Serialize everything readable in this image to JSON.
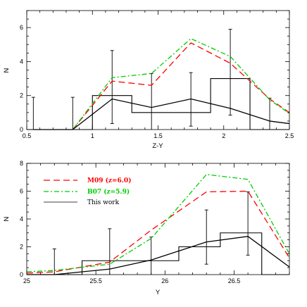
{
  "chart_data": [
    {
      "type": "line",
      "xlabel": "Z-Y",
      "ylabel": "N",
      "xlim": [
        0.5,
        2.5
      ],
      "ylim": [
        0,
        7
      ],
      "xticks": [
        "0.5",
        "1",
        "1.5",
        "2",
        "2.5"
      ],
      "yticks": [
        "0",
        "2",
        "4",
        "6"
      ],
      "series": [
        {
          "style": "dashed",
          "color": "#ff0000",
          "x": [
            0.85,
            1.15,
            1.45,
            1.75,
            2.05,
            2.35,
            2.5
          ],
          "y": [
            0.0,
            2.85,
            2.6,
            5.1,
            3.9,
            1.8,
            1.0
          ]
        },
        {
          "style": "dashdot",
          "color": "#00cc00",
          "x": [
            0.85,
            1.15,
            1.45,
            1.75,
            2.05,
            2.35,
            2.5
          ],
          "y": [
            0.0,
            3.05,
            3.3,
            5.35,
            4.3,
            1.75,
            0.95
          ]
        },
        {
          "style": "solid",
          "color": "#000000",
          "x": [
            0.55,
            0.85,
            1.15,
            1.45,
            1.75,
            2.05,
            2.35,
            2.5
          ],
          "y": [
            0.0,
            0.0,
            1.8,
            1.3,
            1.8,
            1.25,
            0.5,
            0.35
          ]
        }
      ],
      "histogram": {
        "edges": [
          0.5,
          1.0,
          1.3,
          1.9,
          2.2,
          2.5
        ],
        "values": [
          0,
          2,
          1,
          3,
          0
        ]
      },
      "errorbars": [
        {
          "x": 0.55,
          "lo": 0.0,
          "hi": 1.9
        },
        {
          "x": 0.85,
          "lo": 0.0,
          "hi": 1.9
        },
        {
          "x": 1.15,
          "lo": 0.35,
          "hi": 4.65
        },
        {
          "x": 1.45,
          "lo": 0.0,
          "hi": 3.3
        },
        {
          "x": 1.75,
          "lo": 0.2,
          "hi": 3.35
        },
        {
          "x": 2.05,
          "lo": 0.85,
          "hi": 5.9
        },
        {
          "x": 2.35,
          "lo": 0.0,
          "hi": 1.85
        }
      ]
    },
    {
      "type": "line",
      "xlabel": "Y",
      "ylabel": "N",
      "xlim": [
        25,
        26.9
      ],
      "ylim": [
        0,
        8
      ],
      "xticks": [
        "25",
        "25.5",
        "26",
        "26.5"
      ],
      "yticks": [
        "0",
        "2",
        "4",
        "6",
        "8"
      ],
      "legend": {
        "placement": "top-left",
        "entries": [
          {
            "label": "M09 (z=6.0)",
            "style": "dashed",
            "color": "#ff0000"
          },
          {
            "label": "B07 (z=5.9)",
            "style": "dashdot",
            "color": "#00cc00"
          },
          {
            "label": "This work",
            "style": "solid",
            "color": "#000000"
          }
        ]
      },
      "series": [
        {
          "style": "dashed",
          "color": "#ff0000",
          "x": [
            25,
            25.2,
            25.6,
            25.9,
            26.3,
            26.6,
            26.9
          ],
          "y": [
            0.1,
            0.2,
            0.9,
            3.2,
            5.95,
            6.0,
            1.2
          ]
        },
        {
          "style": "dashdot",
          "color": "#00cc00",
          "x": [
            25,
            25.2,
            25.6,
            25.9,
            26.3,
            26.6,
            26.9
          ],
          "y": [
            0.2,
            0.3,
            0.75,
            2.6,
            7.2,
            6.85,
            1.5
          ]
        },
        {
          "style": "solid",
          "color": "#000000",
          "x": [
            25,
            25.2,
            25.6,
            25.9,
            26.3,
            26.6,
            26.9
          ],
          "y": [
            0.0,
            0.0,
            0.4,
            1.05,
            2.35,
            2.75,
            0.55
          ]
        }
      ],
      "histogram": {
        "edges": [
          25.0,
          25.4,
          25.7,
          26.1,
          26.4,
          26.7,
          26.9
        ],
        "values": [
          0,
          1,
          1,
          2,
          3,
          0
        ]
      },
      "errorbars": [
        {
          "x": 25.2,
          "lo": 0.0,
          "hi": 1.85
        },
        {
          "x": 25.6,
          "lo": 0.0,
          "hi": 3.3
        },
        {
          "x": 25.9,
          "lo": 0.0,
          "hi": 2.7
        },
        {
          "x": 26.3,
          "lo": 0.75,
          "hi": 4.65
        },
        {
          "x": 26.6,
          "lo": 1.4,
          "hi": 5.95
        }
      ]
    }
  ]
}
